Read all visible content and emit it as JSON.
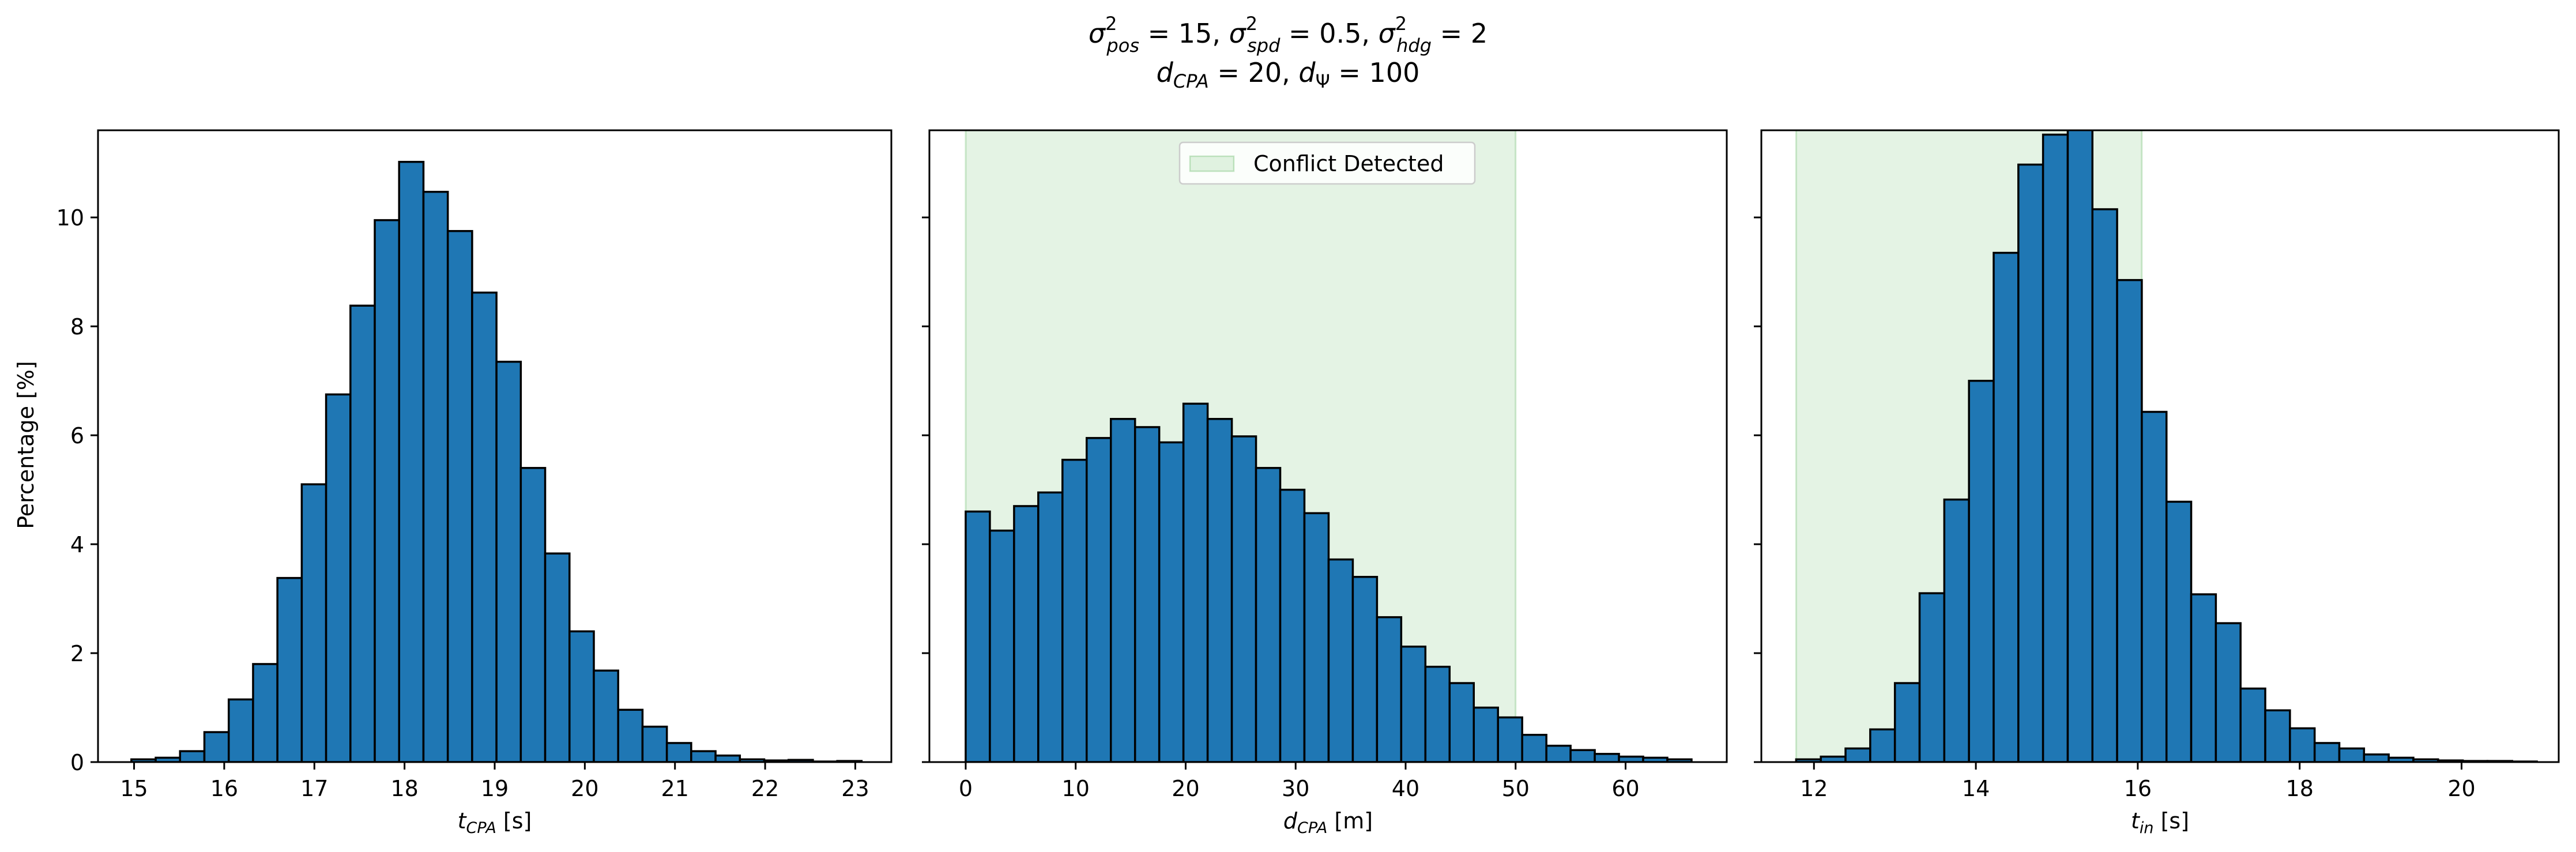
{
  "figure": {
    "title_line1": {
      "s1": "pos",
      "v1": "15",
      "s2": "spd",
      "v2": "0.5",
      "s3": "hdg",
      "v3": "2"
    },
    "title_line2": {
      "s1": "CPA",
      "v1": "20",
      "v2": "100"
    }
  },
  "chart_data": [
    {
      "type": "bar",
      "subtype": "histogram",
      "xlabel_main": "t",
      "xlabel_sub": "CPA",
      "xlabel_unit": " [s]",
      "ylabel": "Percentage [%]",
      "xlim": [
        14.6,
        23.4
      ],
      "ylim": [
        0,
        11.6
      ],
      "xticks": [
        15,
        16,
        17,
        18,
        19,
        20,
        21,
        22,
        23
      ],
      "yticks": [
        0,
        2,
        4,
        6,
        8,
        10
      ],
      "bin_start": 14.97,
      "bin_width": 0.27,
      "values": [
        0.05,
        0.08,
        0.2,
        0.55,
        1.15,
        1.8,
        3.38,
        5.1,
        6.75,
        8.38,
        9.95,
        11.02,
        10.47,
        9.75,
        8.62,
        7.35,
        5.4,
        3.83,
        2.4,
        1.68,
        0.96,
        0.65,
        0.35,
        0.2,
        0.12,
        0.05,
        0.03,
        0.04,
        0.01,
        0.02
      ]
    },
    {
      "type": "bar",
      "subtype": "histogram",
      "xlabel_main": "d",
      "xlabel_sub": "CPA",
      "xlabel_unit": " [m]",
      "xlim": [
        -3.3,
        69.2
      ],
      "ylim": [
        0,
        11.6
      ],
      "xticks": [
        0,
        10,
        20,
        30,
        40,
        50,
        60
      ],
      "bin_start": 0,
      "bin_width": 2.2,
      "shaded_region": [
        0,
        50
      ],
      "shaded_color": "#2ca02c",
      "legend_label": "Conflict Detected",
      "legend_position": "top-center",
      "values": [
        4.6,
        4.25,
        4.7,
        4.95,
        5.55,
        5.95,
        6.3,
        6.15,
        5.87,
        6.58,
        6.3,
        5.98,
        5.4,
        5.0,
        4.57,
        3.72,
        3.4,
        2.66,
        2.12,
        1.75,
        1.45,
        1.0,
        0.82,
        0.5,
        0.3,
        0.22,
        0.15,
        0.1,
        0.08,
        0.05
      ]
    },
    {
      "type": "bar",
      "subtype": "histogram",
      "xlabel_main": "t",
      "xlabel_sub": "in",
      "xlabel_unit": " [s]",
      "xlim": [
        11.35,
        21.2
      ],
      "ylim": [
        0,
        11.6
      ],
      "xticks": [
        12,
        14,
        16,
        18,
        20
      ],
      "bin_start": 11.78,
      "bin_width": 0.305,
      "shaded_region": [
        11.78,
        16.05
      ],
      "shaded_color": "#2ca02c",
      "values": [
        0.05,
        0.1,
        0.25,
        0.6,
        1.45,
        3.1,
        4.82,
        7.0,
        9.35,
        10.97,
        11.52,
        11.95,
        10.15,
        8.85,
        6.43,
        4.78,
        3.08,
        2.55,
        1.35,
        0.95,
        0.62,
        0.35,
        0.25,
        0.14,
        0.08,
        0.05,
        0.03,
        0.02,
        0.02,
        0.01
      ]
    }
  ],
  "colors": {
    "bar_fill": "#1f77b4",
    "bar_edge": "#000000",
    "shade": "#2ca02c"
  }
}
